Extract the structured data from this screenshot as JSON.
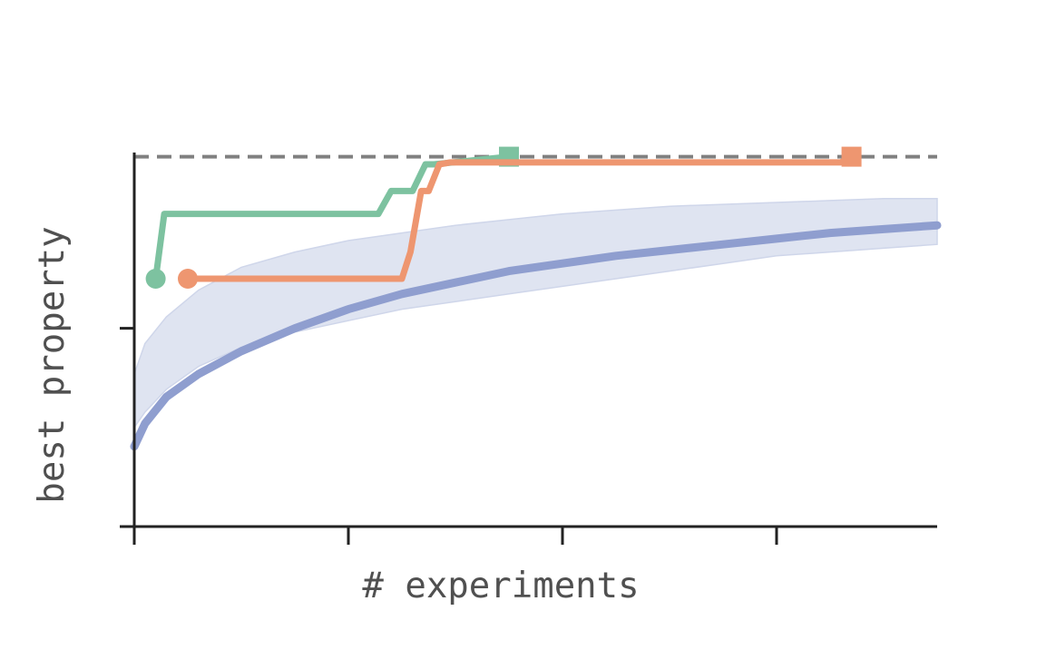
{
  "chart_data": {
    "type": "line",
    "title": "",
    "xlabel": "# experiments",
    "ylabel": "best property",
    "xlim": [
      0,
      750
    ],
    "ylim": [
      0,
      1
    ],
    "x_ticks": [
      0,
      200,
      400,
      600
    ],
    "y_ticks": [
      0,
      0.52
    ],
    "tick_labels_shown": false,
    "grid": false,
    "legend": "none",
    "reference_line": {
      "y": 0.97,
      "style": "dashed",
      "color": "#808080"
    },
    "series": [
      {
        "kind": "mean_with_band",
        "color": "#8f9ecf",
        "band_color": "#dfe4f1",
        "x": [
          0,
          10,
          30,
          60,
          100,
          150,
          200,
          250,
          300,
          350,
          400,
          450,
          500,
          550,
          600,
          650,
          700,
          750
        ],
        "y": [
          0.21,
          0.27,
          0.34,
          0.4,
          0.46,
          0.52,
          0.57,
          0.61,
          0.64,
          0.67,
          0.69,
          0.71,
          0.725,
          0.74,
          0.755,
          0.77,
          0.78,
          0.79
        ],
        "lower": [
          0.26,
          0.3,
          0.36,
          0.42,
          0.47,
          0.51,
          0.54,
          0.57,
          0.59,
          0.61,
          0.63,
          0.65,
          0.67,
          0.69,
          0.71,
          0.72,
          0.73,
          0.74
        ],
        "upper": [
          0.4,
          0.48,
          0.55,
          0.62,
          0.68,
          0.72,
          0.75,
          0.77,
          0.79,
          0.805,
          0.82,
          0.83,
          0.84,
          0.845,
          0.85,
          0.855,
          0.86,
          0.86
        ]
      },
      {
        "kind": "step",
        "color": "#7dc2a0",
        "start_marker": "circle",
        "end_marker": "square",
        "x": [
          20,
          28,
          228,
          240,
          260,
          272,
          280,
          350
        ],
        "y": [
          0.65,
          0.82,
          0.82,
          0.88,
          0.88,
          0.95,
          0.95,
          0.97
        ]
      },
      {
        "kind": "step",
        "color": "#ee9670",
        "start_marker": "circle",
        "end_marker": "square",
        "x": [
          50,
          250,
          258,
          268,
          275,
          285,
          295,
          660,
          670
        ],
        "y": [
          0.65,
          0.65,
          0.72,
          0.88,
          0.88,
          0.95,
          0.955,
          0.955,
          0.97
        ]
      }
    ]
  }
}
